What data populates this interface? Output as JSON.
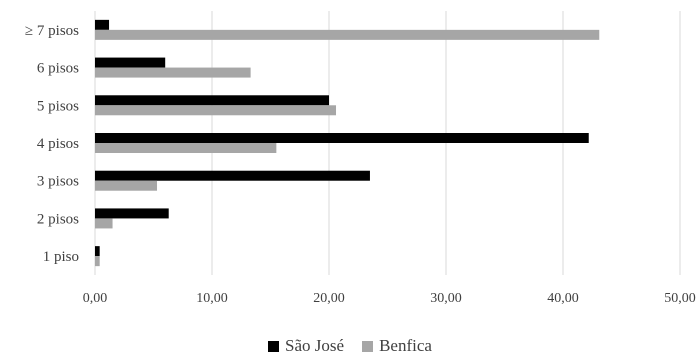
{
  "chart_data": {
    "type": "bar",
    "orientation": "horizontal",
    "categories": [
      "1  piso",
      "2 pisos",
      "3 pisos",
      "4 pisos",
      "5 pisos",
      "6 pisos",
      "≥ 7 pisos"
    ],
    "series": [
      {
        "name": "São José",
        "values": [
          0.4,
          6.3,
          23.5,
          42.2,
          20.0,
          6.0,
          1.2
        ],
        "color": "#000000"
      },
      {
        "name": "Benfica",
        "values": [
          0.4,
          1.5,
          5.3,
          15.5,
          20.6,
          13.3,
          43.1
        ],
        "color": "#a6a6a6"
      }
    ],
    "xlim": [
      0,
      50
    ],
    "x_ticks": [
      0,
      10,
      20,
      30,
      40,
      50
    ],
    "x_tick_labels": [
      "0,00",
      "10,00",
      "20,00",
      "30,00",
      "40,00",
      "50,00"
    ],
    "grid": true,
    "legend_position": "bottom",
    "title": "",
    "xlabel": "",
    "ylabel": ""
  }
}
